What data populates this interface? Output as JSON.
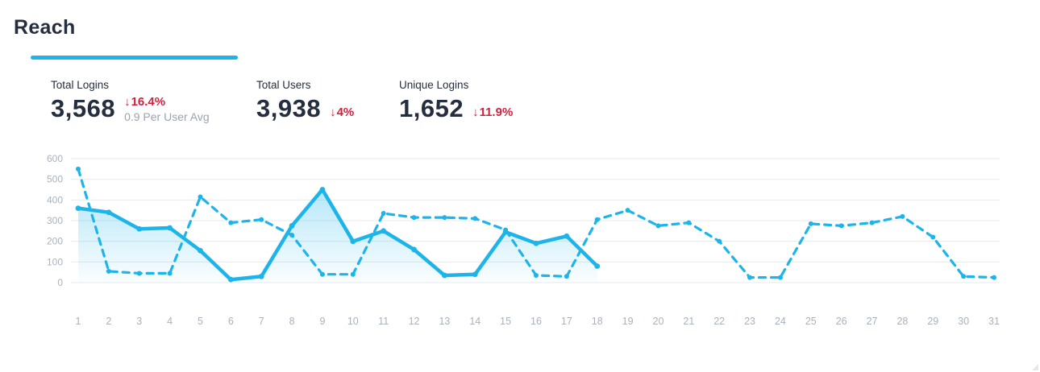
{
  "header": {
    "title": "Reach"
  },
  "colors": {
    "accent": "#1db4e9",
    "negative": "#d21f3c",
    "text_primary": "#242e3e",
    "text_muted": "#9aa3ae",
    "axis_label": "#a9b2bd",
    "gridline": "#e7e9ec"
  },
  "stats": [
    {
      "label": "Total Logins",
      "value": "3,568",
      "delta_icon": "↓",
      "delta": "16.4%",
      "note": "0.9 Per User Avg"
    },
    {
      "label": "Total Users",
      "value": "3,938",
      "delta_icon": "↓",
      "delta": "4%"
    },
    {
      "label": "Unique Logins",
      "value": "1,652",
      "delta_icon": "↓",
      "delta": "11.9%"
    }
  ],
  "chart_data": {
    "type": "line",
    "title": "",
    "xlabel": "",
    "ylabel": "",
    "x": [
      1,
      2,
      3,
      4,
      5,
      6,
      7,
      8,
      9,
      10,
      11,
      12,
      13,
      14,
      15,
      16,
      17,
      18,
      19,
      20,
      21,
      22,
      23,
      24,
      25,
      26,
      27,
      28,
      29,
      30,
      31
    ],
    "ylim": [
      0,
      600
    ],
    "yticks": [
      0,
      100,
      200,
      300,
      400,
      500,
      600
    ],
    "grid": true,
    "legend_position": "none",
    "series": [
      {
        "name": "solid",
        "style": "solid-with-area",
        "color": "#1db4e9",
        "values": [
          360,
          340,
          260,
          265,
          155,
          15,
          30,
          275,
          450,
          200,
          250,
          160,
          35,
          40,
          245,
          190,
          225,
          80
        ]
      },
      {
        "name": "dashed",
        "style": "dashed",
        "color": "#1db4e9",
        "values": [
          550,
          55,
          45,
          45,
          415,
          290,
          305,
          230,
          40,
          40,
          335,
          315,
          315,
          310,
          255,
          35,
          30,
          305,
          350,
          275,
          290,
          200,
          25,
          25,
          285,
          275,
          290,
          320,
          220,
          30,
          25
        ]
      }
    ]
  }
}
